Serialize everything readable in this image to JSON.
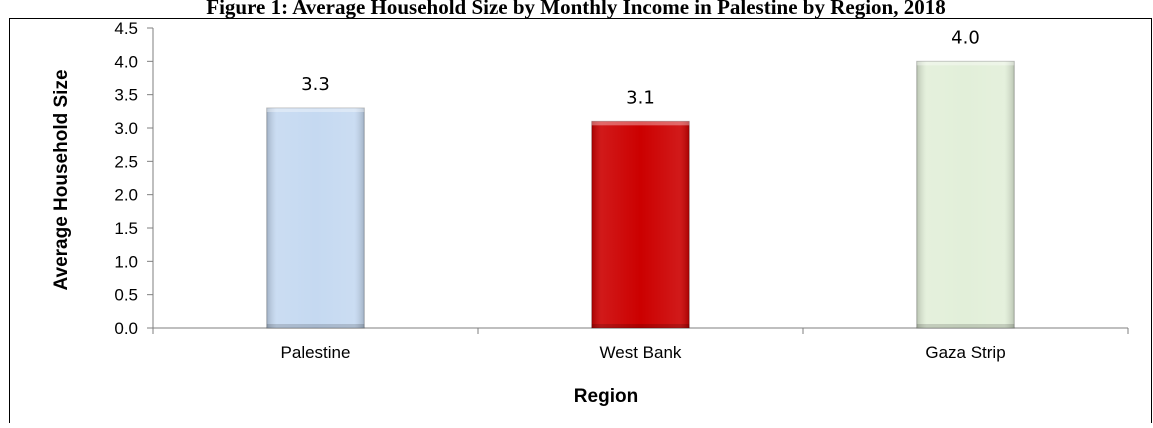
{
  "chart_data": {
    "type": "bar",
    "title": "Figure 1: Average Household Size by Monthly Income in Palestine by Region, 2018",
    "categories": [
      "Palestine",
      "West Bank",
      "Gaza Strip"
    ],
    "values": [
      3.3,
      3.1,
      4.0
    ],
    "data_labels": [
      "3.3",
      "3.1",
      "4.0"
    ],
    "bar_colors": [
      "#c5d9f1",
      "#cc0000",
      "#e2efd9"
    ],
    "xlabel": "Region",
    "ylabel": "Average Household Size",
    "ylim": [
      0,
      4.5
    ],
    "yticks": [
      "0.0",
      "0.5",
      "1.0",
      "1.5",
      "2.0",
      "2.5",
      "3.0",
      "3.5",
      "4.0",
      "4.5"
    ],
    "grid": false,
    "legend": "none"
  }
}
